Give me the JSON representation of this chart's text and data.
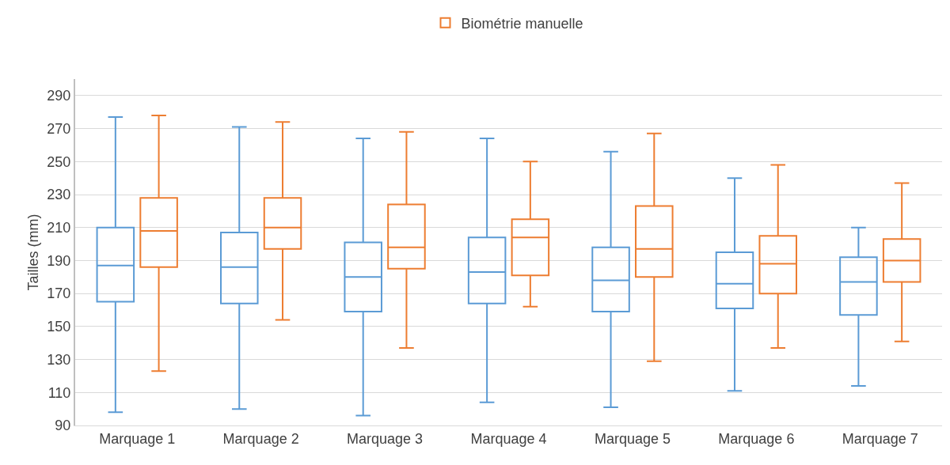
{
  "chart_data": {
    "type": "box",
    "ylabel": "Tailles (mm)",
    "categories": [
      "Marquage 1",
      "Marquage 2",
      "Marquage 3",
      "Marquage 4",
      "Marquage 5",
      "Marquage 6",
      "Marquage 7"
    ],
    "series": [
      {
        "color": "#5b9bd5",
        "boxes": [
          {
            "low": 98,
            "q1": 165,
            "median": 187,
            "q3": 210,
            "high": 277
          },
          {
            "low": 100,
            "q1": 164,
            "median": 186,
            "q3": 207,
            "high": 271
          },
          {
            "low": 96,
            "q1": 159,
            "median": 180,
            "q3": 201,
            "high": 264
          },
          {
            "low": 104,
            "q1": 164,
            "median": 183,
            "q3": 204,
            "high": 264
          },
          {
            "low": 101,
            "q1": 159,
            "median": 178,
            "q3": 198,
            "high": 256
          },
          {
            "low": 111,
            "q1": 161,
            "median": 176,
            "q3": 195,
            "high": 240
          },
          {
            "low": 114,
            "q1": 157,
            "median": 177,
            "q3": 192,
            "high": 210
          }
        ]
      },
      {
        "name": "Biométrie manuelle",
        "color": "#ed7d31",
        "boxes": [
          {
            "low": 123,
            "q1": 186,
            "median": 208,
            "q3": 228,
            "high": 278
          },
          {
            "low": 154,
            "q1": 197,
            "median": 210,
            "q3": 228,
            "high": 274
          },
          {
            "low": 137,
            "q1": 185,
            "median": 198,
            "q3": 224,
            "high": 268
          },
          {
            "low": 162,
            "q1": 181,
            "median": 204,
            "q3": 215,
            "high": 250
          },
          {
            "low": 129,
            "q1": 180,
            "median": 197,
            "q3": 223,
            "high": 267
          },
          {
            "low": 137,
            "q1": 170,
            "median": 188,
            "q3": 205,
            "high": 248
          },
          {
            "low": 141,
            "q1": 177,
            "median": 190,
            "q3": 203,
            "high": 237
          }
        ]
      }
    ],
    "ylim": [
      90,
      300
    ],
    "yticks": [
      90,
      110,
      130,
      150,
      170,
      190,
      210,
      230,
      250,
      270,
      290
    ],
    "grid": "y",
    "legend": "top"
  }
}
